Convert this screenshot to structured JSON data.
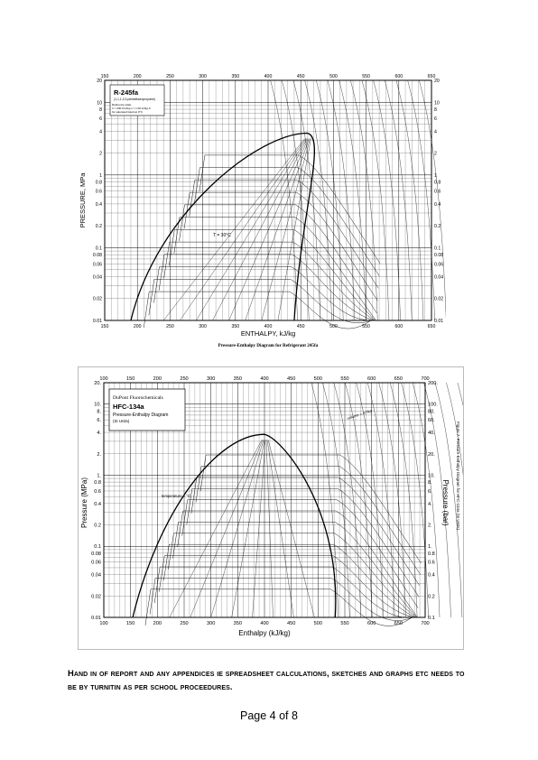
{
  "figure1": {
    "name": "R-245fa",
    "subtitle": "(1,1,1,3,3-pentafluoropropane)",
    "reference_state_lines": [
      "Reference state:",
      "h = 200.0 kJ/kg   s = 1.00 kJ/kg·K",
      "for saturated liquid at 0°C"
    ],
    "caption": "Pressure-Enthalpy Diagram for Refrigerant 245fa",
    "xlabel": "ENTHALPY, kJ/kg",
    "ylabel": "PRESSURE, MPa",
    "x_ticks": [
      "150",
      "200",
      "250",
      "300",
      "350",
      "400",
      "450",
      "500",
      "550",
      "600",
      "650"
    ],
    "y_ticks": [
      "0.01",
      "0.02",
      "0.04",
      "0.06",
      "0.08",
      "0.1",
      "0.2",
      "0.4",
      "0.6",
      "0.8",
      "1",
      "2",
      "4",
      "6",
      "8",
      "10",
      "20"
    ],
    "temp_label": "T = 30°C"
  },
  "figure2": {
    "company": "DuPont Fluorochemicals",
    "name": "HFC-134a",
    "subtitle": "Pressure-Enthalpy Diagram",
    "units": "(SI Units)",
    "side_caption": "Figure 7.  Pressure-Enthalpy Diagram for HFC-134a (SI Units)",
    "xlabel": "Enthalpy (kJ/kg)",
    "ylabel_left": "Pressure (MPa)",
    "ylabel_right": "Pressure (bar)",
    "x_ticks": [
      "100",
      "150",
      "200",
      "250",
      "300",
      "350",
      "400",
      "450",
      "500",
      "550",
      "600",
      "650",
      "700"
    ],
    "y_ticks_left": [
      "0.01",
      "0.02",
      "0.04",
      "0.06",
      "0.08",
      "0.1",
      "0.2",
      "0.4",
      "0.6",
      "0.8",
      "1.",
      "2.",
      "4.",
      "6.",
      "8.",
      "10.",
      "20."
    ],
    "y_ticks_right": [
      "0.1",
      "0.2",
      "0.4",
      "0.6",
      "0.8",
      "1.",
      "2.",
      "4.",
      "6.",
      "8.",
      "10.",
      "20.",
      "40.",
      "60.",
      "80.",
      "100.",
      "200."
    ],
    "temp_label": "temperature = °C",
    "volume_label": "volume = m³/kg"
  },
  "note": "Hand in of report and any appendices ie spreadsheet calculations, sketches and graphs etc needs to be by turnitin as per school proceedures.",
  "page_number": "Page 4 of 8"
}
